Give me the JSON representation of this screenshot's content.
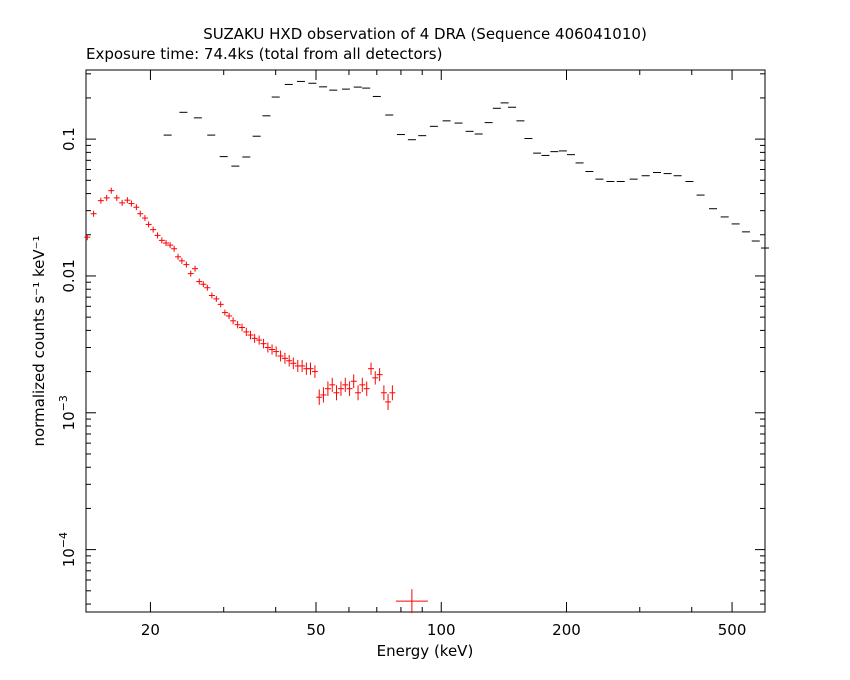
{
  "chart_data": {
    "type": "scatter",
    "title": "SUZAKU HXD observation of 4 DRA (Sequence 406041010)",
    "subtitle": "Exposure time: 74.4ks (total from all detectors)",
    "xlabel": "Energy (keV)",
    "ylabel": "normalized counts s⁻¹ keV⁻¹",
    "xscale": "log",
    "yscale": "log",
    "xlim": [
      14.0,
      600.0
    ],
    "ylim": [
      3.5e-05,
      0.32
    ],
    "x_ticks": [
      {
        "value": 20,
        "label": "20"
      },
      {
        "value": 50,
        "label": "50"
      },
      {
        "value": 100,
        "label": "100"
      },
      {
        "value": 200,
        "label": "200"
      },
      {
        "value": 500,
        "label": "500"
      }
    ],
    "y_ticks": [
      {
        "value": 0.1,
        "label": "0.1"
      },
      {
        "value": 0.01,
        "label": "0.01"
      },
      {
        "value": 0.001,
        "label": "10",
        "exp": "−3"
      },
      {
        "value": 0.0001,
        "label": "10",
        "exp": "−4"
      }
    ],
    "grid": false,
    "legend": "none",
    "series": [
      {
        "color": "#ff0000",
        "points": [
          [
            14.1,
            0.0192
          ],
          [
            14.6,
            0.0285
          ],
          [
            15.2,
            0.0355
          ],
          [
            15.7,
            0.0372
          ],
          [
            16.1,
            0.042
          ],
          [
            16.6,
            0.0372
          ],
          [
            17.1,
            0.0342
          ],
          [
            17.6,
            0.0358
          ],
          [
            18.0,
            0.0338
          ],
          [
            18.5,
            0.0318
          ],
          [
            18.9,
            0.0285
          ],
          [
            19.4,
            0.0265
          ],
          [
            19.8,
            0.0238
          ],
          [
            20.3,
            0.0218
          ],
          [
            20.8,
            0.0198
          ],
          [
            21.3,
            0.0182
          ],
          [
            21.8,
            0.0174
          ],
          [
            22.3,
            0.0168
          ],
          [
            22.8,
            0.0158
          ],
          [
            23.3,
            0.0138
          ],
          [
            23.8,
            0.0129
          ],
          [
            24.4,
            0.0121
          ],
          [
            25.0,
            0.0104
          ],
          [
            25.6,
            0.0113
          ],
          [
            26.2,
            0.0091
          ],
          [
            26.8,
            0.0087
          ],
          [
            27.4,
            0.0082
          ],
          [
            28.1,
            0.0072
          ],
          [
            28.8,
            0.0068
          ],
          [
            29.5,
            0.0062
          ],
          [
            30.2,
            0.0054
          ],
          [
            30.9,
            0.0051
          ],
          [
            31.6,
            0.0047
          ],
          [
            32.4,
            0.0044
          ],
          [
            33.2,
            0.0042
          ],
          [
            34.0,
            0.0039
          ],
          [
            34.8,
            0.0037
          ],
          [
            35.6,
            0.0035
          ],
          [
            36.5,
            0.0034
          ],
          [
            37.4,
            0.0032
          ],
          [
            38.3,
            0.003
          ],
          [
            39.2,
            0.0029
          ],
          [
            40.1,
            0.0028
          ],
          [
            41.1,
            0.0026
          ],
          [
            42.1,
            0.0025
          ],
          [
            43.1,
            0.0024
          ],
          [
            44.1,
            0.0023
          ],
          [
            45.2,
            0.0022
          ],
          [
            46.3,
            0.0022
          ],
          [
            47.4,
            0.0021
          ],
          [
            48.5,
            0.0021
          ],
          [
            49.7,
            0.002
          ],
          [
            50.9,
            0.0013
          ],
          [
            52.1,
            0.00135
          ],
          [
            53.4,
            0.0015
          ],
          [
            54.7,
            0.0016
          ],
          [
            56.0,
            0.0014
          ],
          [
            57.4,
            0.0015
          ],
          [
            58.8,
            0.0016
          ],
          [
            60.2,
            0.0015
          ],
          [
            61.6,
            0.0017
          ],
          [
            63.1,
            0.0014
          ],
          [
            64.6,
            0.0016
          ],
          [
            66.2,
            0.0015
          ],
          [
            67.8,
            0.0021
          ],
          [
            69.4,
            0.0018
          ],
          [
            71.1,
            0.0019
          ],
          [
            72.8,
            0.0014
          ],
          [
            74.5,
            0.0012
          ],
          [
            76.3,
            0.0014
          ]
        ]
      },
      {
        "color": "#ff0000",
        "points": [
          [
            85.0,
            4.2e-05
          ]
        ]
      },
      {
        "color": "#000000",
        "points": [
          [
            22.0,
            0.107
          ],
          [
            24.0,
            0.157
          ],
          [
            26.0,
            0.143
          ],
          [
            28.0,
            0.107
          ],
          [
            30.0,
            0.0745
          ],
          [
            32.0,
            0.0635
          ],
          [
            34.0,
            0.074
          ],
          [
            36.0,
            0.105
          ],
          [
            38.0,
            0.148
          ],
          [
            40.0,
            0.203
          ],
          [
            43.0,
            0.251
          ],
          [
            46.0,
            0.264
          ],
          [
            49.0,
            0.256
          ],
          [
            52.0,
            0.241
          ],
          [
            55.0,
            0.228
          ],
          [
            59.0,
            0.232
          ],
          [
            63.0,
            0.24
          ],
          [
            66.0,
            0.236
          ],
          [
            70.0,
            0.205
          ],
          [
            75.0,
            0.15
          ],
          [
            80.0,
            0.108
          ],
          [
            85.0,
            0.099
          ],
          [
            90.0,
            0.106
          ],
          [
            96.0,
            0.124
          ],
          [
            103.0,
            0.136
          ],
          [
            110.0,
            0.131
          ],
          [
            117.0,
            0.114
          ],
          [
            123.0,
            0.109
          ],
          [
            130.0,
            0.132
          ],
          [
            136.0,
            0.168
          ],
          [
            142.0,
            0.184
          ],
          [
            148.0,
            0.171
          ],
          [
            155.0,
            0.136
          ],
          [
            162.0,
            0.101
          ],
          [
            170.0,
            0.079
          ],
          [
            178.0,
            0.076
          ],
          [
            187.0,
            0.081
          ],
          [
            196.0,
            0.082
          ],
          [
            205.0,
            0.077
          ],
          [
            215.0,
            0.067
          ],
          [
            227.0,
            0.058
          ],
          [
            240.0,
            0.051
          ],
          [
            255.0,
            0.049
          ],
          [
            270.0,
            0.049
          ],
          [
            290.0,
            0.051
          ],
          [
            310.0,
            0.054
          ],
          [
            330.0,
            0.057
          ],
          [
            350.0,
            0.056
          ],
          [
            370.0,
            0.054
          ],
          [
            395.0,
            0.049
          ],
          [
            420.0,
            0.039
          ],
          [
            450.0,
            0.031
          ],
          [
            480.0,
            0.027
          ],
          [
            510.0,
            0.024
          ],
          [
            540.0,
            0.021
          ],
          [
            570.0,
            0.018
          ],
          [
            600.0,
            0.016
          ]
        ]
      }
    ]
  }
}
